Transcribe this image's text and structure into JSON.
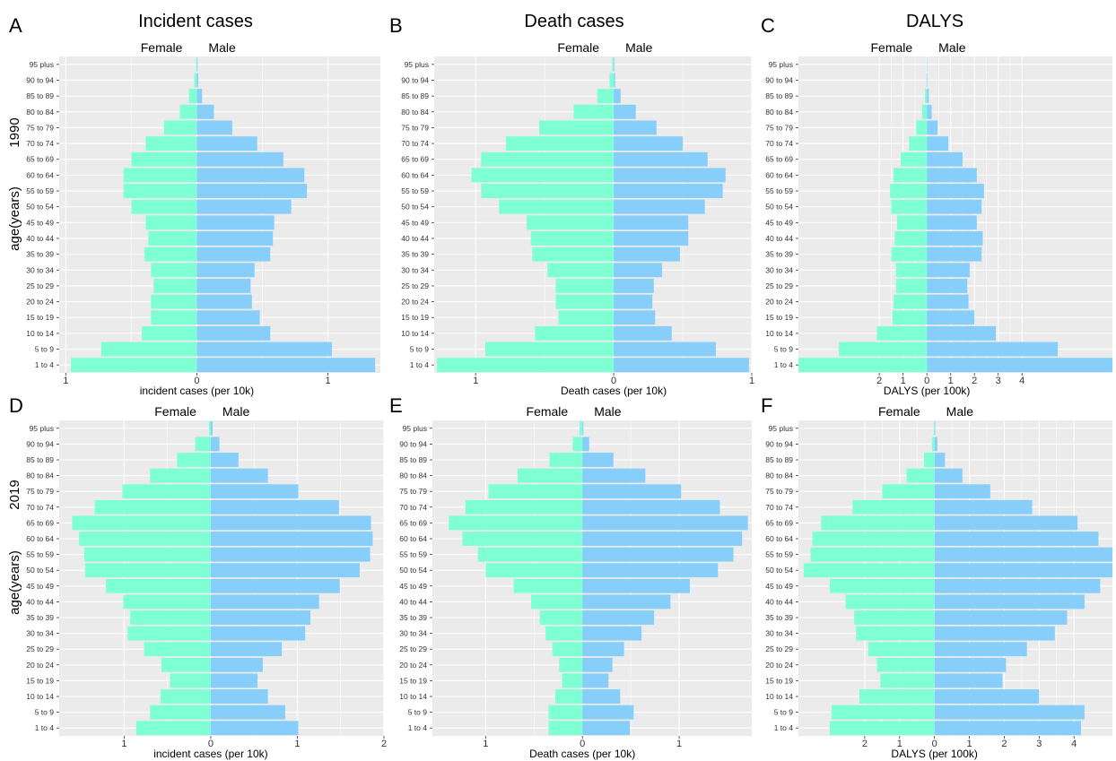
{
  "figure": {
    "panel_letters": [
      "A",
      "B",
      "C",
      "D",
      "E",
      "F"
    ],
    "column_titles": [
      "Incident cases",
      "Death cases",
      "DALYS"
    ],
    "row_year_labels": [
      "1990",
      "2019"
    ],
    "row_axis_label": "age(years)",
    "legend_female": "Female",
    "legend_male": "Male",
    "colors": {
      "female": "#7FFFD4",
      "male": "#87CEFA",
      "panel_bg": "#EBEBEB",
      "grid": "#FFFFFF"
    }
  },
  "chart_data": [
    {
      "type": "bar",
      "orientation": "horizontal-population-pyramid",
      "panel": "A",
      "title": "Incident cases",
      "year": "1990",
      "xlabel": "incident cases (per 10k)",
      "ylabel": "age(years)",
      "xlim": [
        -1.05,
        1.4
      ],
      "x_ticks": [
        {
          "v": -1,
          "label": "1"
        },
        {
          "v": 0,
          "label": "0"
        },
        {
          "v": 1,
          "label": "1"
        }
      ],
      "categories": [
        "1 to 4",
        "5 to 9",
        "10 to 14",
        "15 to 19",
        "20 to 24",
        "25 to 29",
        "30 to 34",
        "35 to 39",
        "40 to 44",
        "45 to 49",
        "50 to 54",
        "55 to 59",
        "60 to 64",
        "65 to 69",
        "70 to 74",
        "75 to 79",
        "80 to 84",
        "85 to 89",
        "90 to 94",
        "95 plus"
      ],
      "series": [
        {
          "name": "Female",
          "values": [
            0.96,
            0.73,
            0.42,
            0.35,
            0.35,
            0.33,
            0.35,
            0.4,
            0.37,
            0.39,
            0.5,
            0.56,
            0.56,
            0.5,
            0.39,
            0.25,
            0.13,
            0.06,
            0.02,
            0.005
          ]
        },
        {
          "name": "Male",
          "values": [
            1.36,
            1.03,
            0.56,
            0.48,
            0.42,
            0.41,
            0.44,
            0.56,
            0.58,
            0.59,
            0.72,
            0.84,
            0.82,
            0.66,
            0.46,
            0.27,
            0.13,
            0.04,
            0.01,
            0.005
          ]
        }
      ],
      "grid": true
    },
    {
      "type": "bar",
      "orientation": "horizontal-population-pyramid",
      "panel": "B",
      "title": "Death cases",
      "year": "1990",
      "xlabel": "Death cases (per 10k)",
      "ylabel": "",
      "xlim": [
        -1.3,
        1.0
      ],
      "x_ticks": [
        {
          "v": -1,
          "label": "1"
        },
        {
          "v": 0,
          "label": "0"
        },
        {
          "v": 1,
          "label": "1"
        }
      ],
      "categories": [
        "1 to 4",
        "5 to 9",
        "10 to 14",
        "15 to 19",
        "20 to 24",
        "25 to 29",
        "30 to 34",
        "35 to 39",
        "40 to 44",
        "45 to 49",
        "50 to 54",
        "55 to 59",
        "60 to 64",
        "65 to 69",
        "70 to 74",
        "75 to 79",
        "80 to 84",
        "85 to 89",
        "90 to 94",
        "95 plus"
      ],
      "series": [
        {
          "name": "Female",
          "values": [
            1.28,
            0.93,
            0.57,
            0.4,
            0.42,
            0.42,
            0.48,
            0.59,
            0.6,
            0.63,
            0.83,
            0.96,
            1.03,
            0.96,
            0.78,
            0.54,
            0.29,
            0.12,
            0.03,
            0.01
          ]
        },
        {
          "name": "Male",
          "values": [
            0.98,
            0.74,
            0.42,
            0.3,
            0.28,
            0.29,
            0.35,
            0.48,
            0.54,
            0.54,
            0.66,
            0.79,
            0.81,
            0.68,
            0.5,
            0.31,
            0.16,
            0.05,
            0.01,
            0.005
          ]
        }
      ],
      "grid": true
    },
    {
      "type": "bar",
      "orientation": "horizontal-population-pyramid",
      "panel": "C",
      "title": "DALYS",
      "year": "1990",
      "xlabel": "DALYS (per 100k)",
      "ylabel": "",
      "xlim": [
        -5.4,
        7.8
      ],
      "x_ticks": [
        {
          "v": -2,
          "label": "2"
        },
        {
          "v": -1,
          "label": "1"
        },
        {
          "v": 0,
          "label": "0"
        },
        {
          "v": 1,
          "label": "1"
        },
        {
          "v": 2,
          "label": "2"
        },
        {
          "v": 3,
          "label": "3"
        },
        {
          "v": 4,
          "label": "4"
        }
      ],
      "categories": [
        "1 to 4",
        "5 to 9",
        "10 to 14",
        "15 to 19",
        "20 to 24",
        "25 to 29",
        "30 to 34",
        "35 to 39",
        "40 to 44",
        "45 to 49",
        "50 to 54",
        "55 to 59",
        "60 to 64",
        "65 to 69",
        "70 to 74",
        "75 to 79",
        "80 to 84",
        "85 to 89",
        "90 to 94",
        "95 plus"
      ],
      "series": [
        {
          "name": "Female",
          "values": [
            5.4,
            3.7,
            2.1,
            1.45,
            1.4,
            1.3,
            1.3,
            1.5,
            1.35,
            1.25,
            1.5,
            1.55,
            1.4,
            1.1,
            0.75,
            0.45,
            0.2,
            0.08,
            0.02,
            0.01
          ]
        },
        {
          "name": "Male",
          "values": [
            7.8,
            5.5,
            2.9,
            2.0,
            1.75,
            1.7,
            1.8,
            2.3,
            2.35,
            2.1,
            2.3,
            2.4,
            2.1,
            1.5,
            0.9,
            0.45,
            0.2,
            0.08,
            0.02,
            0.01
          ]
        }
      ],
      "grid": true
    },
    {
      "type": "bar",
      "orientation": "horizontal-population-pyramid",
      "panel": "D",
      "title": "",
      "year": "2019",
      "xlabel": "incident cases (per 10k)",
      "ylabel": "age(years)",
      "xlim": [
        -1.75,
        2.0
      ],
      "x_ticks": [
        {
          "v": -1,
          "label": "1"
        },
        {
          "v": 0,
          "label": "0"
        },
        {
          "v": 1,
          "label": "1"
        },
        {
          "v": 2,
          "label": "2"
        }
      ],
      "categories": [
        "1 to 4",
        "5 to 9",
        "10 to 14",
        "15 to 19",
        "20 to 24",
        "25 to 29",
        "30 to 34",
        "35 to 39",
        "40 to 44",
        "45 to 49",
        "50 to 54",
        "55 to 59",
        "60 to 64",
        "65 to 69",
        "70 to 74",
        "75 to 79",
        "80 to 84",
        "85 to 89",
        "90 to 94",
        "95 plus"
      ],
      "series": [
        {
          "name": "Female",
          "values": [
            0.86,
            0.7,
            0.58,
            0.47,
            0.57,
            0.77,
            0.96,
            0.93,
            1.01,
            1.21,
            1.45,
            1.46,
            1.52,
            1.6,
            1.34,
            1.02,
            0.7,
            0.39,
            0.18,
            0.02
          ]
        },
        {
          "name": "Male",
          "values": [
            1.01,
            0.86,
            0.66,
            0.54,
            0.6,
            0.82,
            1.09,
            1.15,
            1.25,
            1.49,
            1.72,
            1.84,
            1.87,
            1.85,
            1.48,
            1.01,
            0.66,
            0.32,
            0.1,
            0.02
          ]
        }
      ],
      "grid": true
    },
    {
      "type": "bar",
      "orientation": "horizontal-population-pyramid",
      "panel": "E",
      "title": "",
      "year": "2019",
      "xlabel": "Death cases (per 10k)",
      "ylabel": "",
      "xlim": [
        -1.55,
        1.75
      ],
      "x_ticks": [
        {
          "v": -1,
          "label": "1"
        },
        {
          "v": 0,
          "label": "0"
        },
        {
          "v": 1,
          "label": "1"
        }
      ],
      "categories": [
        "1 to 4",
        "5 to 9",
        "10 to 14",
        "15 to 19",
        "20 to 24",
        "25 to 29",
        "30 to 34",
        "35 to 39",
        "40 to 44",
        "45 to 49",
        "50 to 54",
        "55 to 59",
        "60 to 64",
        "65 to 69",
        "70 to 74",
        "75 to 79",
        "80 to 84",
        "85 to 89",
        "90 to 94",
        "95 plus"
      ],
      "series": [
        {
          "name": "Female",
          "values": [
            0.35,
            0.35,
            0.28,
            0.21,
            0.24,
            0.31,
            0.38,
            0.44,
            0.53,
            0.71,
            1.0,
            1.08,
            1.24,
            1.38,
            1.21,
            0.97,
            0.67,
            0.34,
            0.1,
            0.03
          ]
        },
        {
          "name": "Male",
          "values": [
            0.49,
            0.53,
            0.39,
            0.27,
            0.31,
            0.43,
            0.61,
            0.74,
            0.91,
            1.11,
            1.4,
            1.56,
            1.65,
            1.71,
            1.42,
            1.02,
            0.65,
            0.32,
            0.07,
            0.01
          ]
        }
      ],
      "grid": true
    },
    {
      "type": "bar",
      "orientation": "horizontal-population-pyramid",
      "panel": "F",
      "title": "",
      "year": "2019",
      "xlabel": "DALYS (per 100k)",
      "ylabel": "",
      "xlim": [
        -3.9,
        5.1
      ],
      "x_ticks": [
        {
          "v": -2,
          "label": "2"
        },
        {
          "v": -1,
          "label": "1"
        },
        {
          "v": 0,
          "label": "0"
        },
        {
          "v": 1,
          "label": "1"
        },
        {
          "v": 2,
          "label": "2"
        },
        {
          "v": 3,
          "label": "3"
        },
        {
          "v": 4,
          "label": "4"
        }
      ],
      "categories": [
        "1 to 4",
        "5 to 9",
        "10 to 14",
        "15 to 19",
        "20 to 24",
        "25 to 29",
        "30 to 34",
        "35 to 39",
        "40 to 44",
        "45 to 49",
        "50 to 54",
        "55 to 59",
        "60 to 64",
        "65 to 69",
        "70 to 74",
        "75 to 79",
        "80 to 84",
        "85 to 89",
        "90 to 94",
        "95 plus"
      ],
      "series": [
        {
          "name": "Female",
          "values": [
            3.0,
            2.95,
            2.15,
            1.55,
            1.65,
            1.9,
            2.25,
            2.3,
            2.55,
            3.0,
            3.75,
            3.55,
            3.5,
            3.25,
            2.35,
            1.5,
            0.8,
            0.3,
            0.07,
            0.02
          ]
        },
        {
          "name": "Male",
          "values": [
            4.2,
            4.3,
            3.0,
            1.95,
            2.05,
            2.65,
            3.45,
            3.8,
            4.3,
            4.75,
            5.25,
            5.2,
            4.7,
            4.1,
            2.8,
            1.6,
            0.8,
            0.3,
            0.08,
            0.02
          ]
        }
      ],
      "grid": true
    }
  ]
}
